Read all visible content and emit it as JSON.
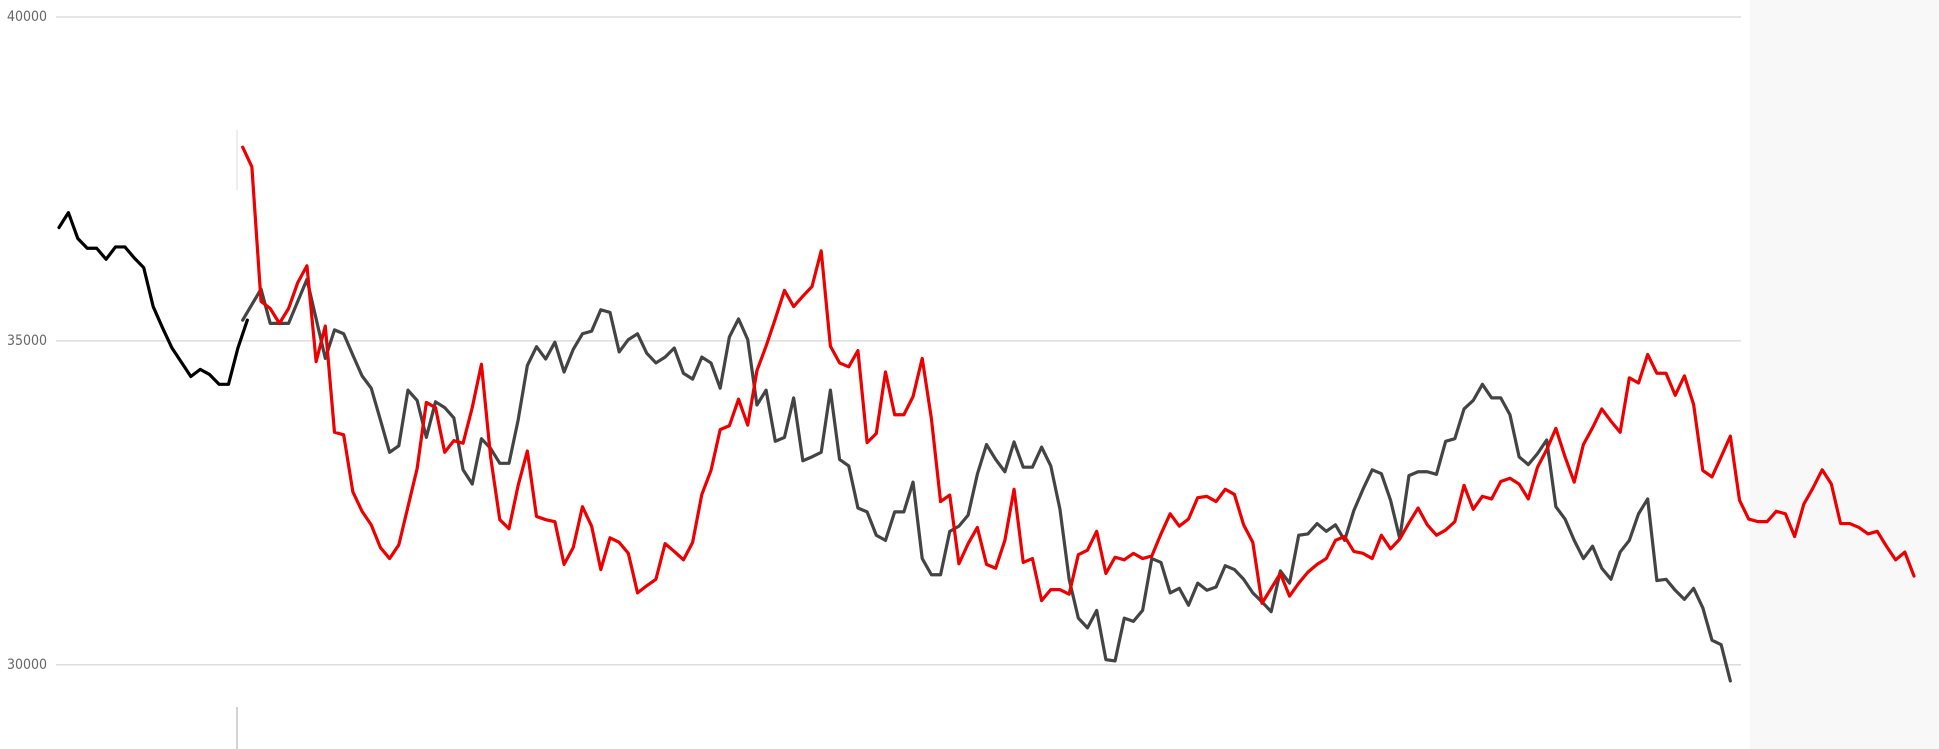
{
  "chart_data": {
    "type": "line",
    "ylim": [
      28700,
      40000
    ],
    "yticks": [
      30000,
      35000,
      40000
    ],
    "grid": true,
    "series": [
      {
        "color": "#000000",
        "values": [
          36750,
          36980,
          36580,
          36430,
          36430,
          36260,
          36450,
          36450,
          36280,
          36130,
          35530,
          35200,
          34890,
          34670,
          34450,
          34560,
          34480,
          34330,
          34330,
          34890,
          35320,
          null,
          null,
          null,
          null,
          null,
          null,
          null,
          null,
          null,
          null,
          null,
          null,
          null,
          null,
          null,
          null,
          null,
          null,
          null,
          null,
          null,
          null,
          null,
          null,
          null,
          null,
          null,
          null,
          null,
          null,
          null,
          null,
          null,
          null,
          null,
          null,
          null,
          null,
          null,
          null,
          null,
          null,
          null,
          null,
          null,
          null,
          null,
          null,
          null,
          null,
          null,
          null,
          null,
          null,
          null,
          null,
          null,
          null,
          null,
          null,
          null,
          null,
          null,
          null,
          null,
          null,
          null,
          null,
          null,
          null,
          null,
          null,
          null,
          null,
          null,
          null,
          null,
          null,
          null,
          null,
          null,
          null,
          null,
          null,
          null,
          null,
          null,
          null,
          null,
          null,
          null,
          null,
          null,
          null,
          null,
          null,
          null,
          null,
          null,
          null,
          null,
          null,
          null,
          null,
          null,
          null,
          null,
          null,
          null,
          null,
          null,
          null,
          null,
          null,
          null,
          null,
          null,
          null,
          null,
          null,
          null,
          null,
          null,
          null,
          null,
          null,
          null,
          null,
          null,
          null,
          null,
          null,
          null,
          null,
          null,
          null,
          null,
          null,
          null,
          null,
          null,
          null,
          null,
          null,
          null,
          null,
          null,
          null,
          null,
          null,
          null,
          null,
          null,
          null,
          null,
          null,
          null,
          null,
          null,
          null,
          null,
          null,
          null,
          null,
          null,
          null,
          null,
          null,
          null,
          null,
          null,
          null,
          null,
          null,
          null,
          null,
          null
        ]
      },
      {
        "color": "#444444",
        "values": [
          null,
          null,
          null,
          null,
          null,
          null,
          null,
          null,
          null,
          null,
          null,
          null,
          null,
          null,
          null,
          null,
          null,
          null,
          null,
          null,
          35320,
          35560,
          35800,
          35270,
          35270,
          35270,
          35610,
          35950,
          35340,
          34730,
          35170,
          35110,
          34780,
          34460,
          34270,
          33780,
          33280,
          33380,
          34240,
          34080,
          33510,
          34060,
          33970,
          33810,
          33010,
          32790,
          33490,
          33340,
          33110,
          33110,
          33780,
          34620,
          34910,
          34720,
          34980,
          34520,
          34870,
          35110,
          35150,
          35480,
          35440,
          34830,
          35020,
          35110,
          34810,
          34660,
          34750,
          34890,
          34500,
          34410,
          34750,
          34660,
          34270,
          35060,
          35340,
          35020,
          34010,
          34240,
          33450,
          33510,
          34120,
          33150,
          33210,
          33280,
          34240,
          33170,
          33070,
          32420,
          32360,
          32000,
          31920,
          32360,
          32360,
          32820,
          31640,
          31390,
          31390,
          32060,
          32140,
          32310,
          32940,
          33400,
          33170,
          32980,
          33440,
          33050,
          33050,
          33360,
          33070,
          32400,
          31320,
          30720,
          30570,
          30840,
          30080,
          30060,
          30720,
          30670,
          30840,
          31640,
          31580,
          31110,
          31180,
          30920,
          31260,
          31150,
          31200,
          31530,
          31470,
          31320,
          31110,
          30970,
          30820,
          31450,
          31260,
          32000,
          32020,
          32180,
          32060,
          32160,
          31920,
          32380,
          32710,
          33010,
          32950,
          32540,
          31950,
          32920,
          32980,
          32980,
          32940,
          33450,
          33490,
          33950,
          34080,
          34330,
          34120,
          34120,
          33860,
          33210,
          33090,
          33260,
          33470,
          32440,
          32250,
          31920,
          31640,
          31830,
          31490,
          31320,
          31740,
          31920,
          32330,
          32560,
          31300,
          31320,
          31150,
          31010,
          31180,
          30880,
          30380,
          30310,
          29750,
          null,
          null,
          null,
          null,
          null,
          null,
          null,
          null,
          null,
          null,
          null,
          null,
          null,
          null,
          null,
          null,
          null,
          null,
          null,
          null
        ]
      },
      {
        "color": "#ee0000",
        "values": [
          null,
          null,
          null,
          null,
          null,
          null,
          null,
          null,
          null,
          null,
          null,
          null,
          null,
          null,
          null,
          null,
          null,
          null,
          null,
          null,
          37990,
          37690,
          35610,
          35500,
          35270,
          35500,
          35900,
          36160,
          34680,
          35230,
          33590,
          33550,
          32670,
          32370,
          32160,
          31810,
          31640,
          31850,
          32440,
          33030,
          34050,
          33970,
          33280,
          33460,
          33420,
          33970,
          34640,
          33210,
          32240,
          32100,
          32770,
          33300,
          32290,
          32240,
          32210,
          31550,
          31810,
          32440,
          32140,
          31470,
          31960,
          31890,
          31720,
          31110,
          31220,
          31320,
          31870,
          31750,
          31620,
          31890,
          32630,
          33000,
          33630,
          33690,
          34100,
          33700,
          34540,
          34920,
          35340,
          35780,
          35530,
          35690,
          35840,
          36390,
          34920,
          34660,
          34600,
          34850,
          33430,
          33570,
          34520,
          33860,
          33860,
          34140,
          34730,
          33800,
          32520,
          32620,
          31560,
          31870,
          32120,
          31550,
          31490,
          31920,
          32710,
          31580,
          31640,
          30990,
          31160,
          31160,
          31090,
          31700,
          31770,
          32060,
          31410,
          31660,
          31620,
          31720,
          31640,
          31680,
          32020,
          32330,
          32140,
          32250,
          32580,
          32600,
          32520,
          32710,
          32630,
          32160,
          31890,
          30950,
          31180,
          31410,
          31060,
          31260,
          31430,
          31550,
          31640,
          31920,
          31980,
          31750,
          31720,
          31640,
          32000,
          31790,
          31940,
          32190,
          32420,
          32160,
          32000,
          32080,
          32210,
          32770,
          32400,
          32600,
          32560,
          32830,
          32880,
          32790,
          32560,
          33050,
          33320,
          33650,
          33210,
          32820,
          33400,
          33660,
          33950,
          33760,
          33590,
          34430,
          34350,
          34790,
          34500,
          34500,
          34160,
          34460,
          34020,
          33000,
          32900,
          33210,
          33530,
          32540,
          32250,
          32210,
          32210,
          32370,
          32330,
          31980,
          32480,
          32730,
          33010,
          32790,
          32180,
          32180,
          32120,
          32020,
          32060,
          31830,
          31620,
          31740,
          31370
        ]
      }
    ]
  }
}
